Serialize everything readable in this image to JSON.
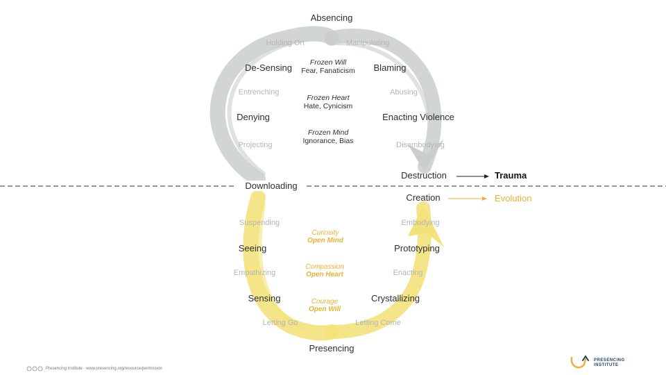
{
  "diagram": {
    "destruction_labels": {
      "absencing": "Absencing",
      "holding_on": "Holding On",
      "manipulating": "Manipulating",
      "de_sensing": "De-Sensing",
      "blaming": "Blaming",
      "entrenching": "Entrenching",
      "abusing": "Abusing",
      "denying": "Denying",
      "enacting_violence": "Enacting Violence",
      "projecting": "Projecting",
      "disembodying": "Disembodying",
      "destruction": "Destruction",
      "trauma": "Trauma"
    },
    "frozen": [
      {
        "title": "Frozen Will",
        "sub": "Fear, Fanaticism"
      },
      {
        "title": "Frozen Heart",
        "sub": "Hate, Cynicism"
      },
      {
        "title": "Frozen Mind",
        "sub": "Ignorance, Bias"
      }
    ],
    "downloading": "Downloading",
    "creation_labels": {
      "creation": "Creation",
      "evolution": "Evolution",
      "suspending": "Suspending",
      "embodying": "Embodying",
      "seeing": "Seeing",
      "prototyping": "Prototyping",
      "empathizing": "Empathizing",
      "enacting": "Enacting",
      "sensing": "Sensing",
      "crystallizing": "Crystallizing",
      "letting_go": "Letting Go",
      "letting_come": "Letting Come",
      "presencing": "Presencing"
    },
    "open": [
      {
        "title": "Curiosity",
        "sub": "Open Mind"
      },
      {
        "title": "Compassion",
        "sub": "Open Heart"
      },
      {
        "title": "Courage",
        "sub": "Open Will"
      }
    ]
  },
  "footer": {
    "text": "Presencing Institute - www.presencing.org/resource/permission"
  },
  "logo": {
    "line1": "PRESENCING",
    "line2": "INSTITUTE"
  },
  "colors": {
    "gray_stroke": "#c9cecd",
    "yellow_stroke": "#f3e27c",
    "gold_text": "#e8b234",
    "dark_text": "#2e2e2e",
    "light_text": "#b4b4b4"
  }
}
